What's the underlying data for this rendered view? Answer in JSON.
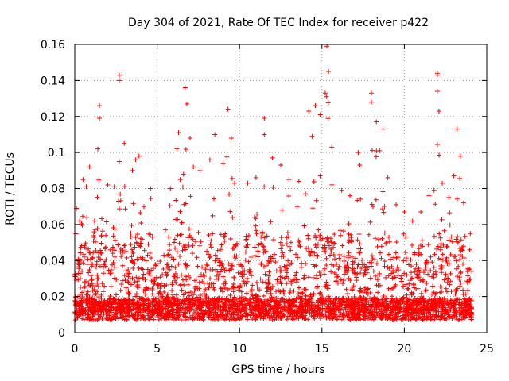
{
  "chart_data": {
    "type": "scatter",
    "title": "Day 304 of 2021, Rate Of TEC Index for receiver p422",
    "xlabel": "GPS time / hours",
    "ylabel": "ROTI / TECUs",
    "xlim": [
      0,
      25
    ],
    "ylim": [
      0,
      0.16
    ],
    "xticks": [
      0,
      5,
      10,
      15,
      20,
      25
    ],
    "xtick_labels": [
      "0",
      "5",
      "10",
      "15",
      "20",
      "25"
    ],
    "yticks": [
      0,
      0.02,
      0.04,
      0.06,
      0.08,
      0.1,
      0.12,
      0.14,
      0.16
    ],
    "ytick_labels": [
      "0",
      "0.02",
      "0.04",
      "0.06",
      "0.08",
      "0.1",
      "0.12",
      "0.14",
      "0.16"
    ],
    "grid": true,
    "marker": "+",
    "series_color": "#ff0000",
    "series": [
      {
        "name": "ROTI",
        "description": "dense scatter of ROTI values over 0-24 h, baseline ~0.01 TECU with spikes",
        "sample_points": [
          [
            0.1,
            0.069
          ],
          [
            0.3,
            0.062
          ],
          [
            0.5,
            0.085
          ],
          [
            0.7,
            0.081
          ],
          [
            0.9,
            0.092
          ],
          [
            1.2,
            0.062
          ],
          [
            1.5,
            0.126
          ],
          [
            1.5,
            0.119
          ],
          [
            1.4,
            0.102
          ],
          [
            2.0,
            0.082
          ],
          [
            2.4,
            0.081
          ],
          [
            2.7,
            0.095
          ],
          [
            2.7,
            0.143
          ],
          [
            2.7,
            0.14
          ],
          [
            3.0,
            0.105
          ],
          [
            3.5,
            0.09
          ],
          [
            3.7,
            0.096
          ],
          [
            3.9,
            0.098
          ],
          [
            4.2,
            0.07
          ],
          [
            4.6,
            0.08
          ],
          [
            5.5,
            0.057
          ],
          [
            5.8,
            0.08
          ],
          [
            6.2,
            0.102
          ],
          [
            6.3,
            0.111
          ],
          [
            6.4,
            0.085
          ],
          [
            6.6,
            0.088
          ],
          [
            6.8,
            0.127
          ],
          [
            6.7,
            0.136
          ],
          [
            7.0,
            0.108
          ],
          [
            7.2,
            0.092
          ],
          [
            7.6,
            0.09
          ],
          [
            8.2,
            0.096
          ],
          [
            8.5,
            0.11
          ],
          [
            9.0,
            0.094
          ],
          [
            9.3,
            0.124
          ],
          [
            9.5,
            0.108
          ],
          [
            9.7,
            0.083
          ],
          [
            10.5,
            0.083
          ],
          [
            11.0,
            0.086
          ],
          [
            11.5,
            0.119
          ],
          [
            11.5,
            0.11
          ],
          [
            12.0,
            0.097
          ],
          [
            12.5,
            0.093
          ],
          [
            13.0,
            0.085
          ],
          [
            13.5,
            0.07
          ],
          [
            13.6,
            0.084
          ],
          [
            14.0,
            0.077
          ],
          [
            14.2,
            0.123
          ],
          [
            14.4,
            0.109
          ],
          [
            14.6,
            0.126
          ],
          [
            14.9,
            0.121
          ],
          [
            15.2,
            0.133
          ],
          [
            15.3,
            0.159
          ],
          [
            15.4,
            0.145
          ],
          [
            15.6,
            0.103
          ],
          [
            16.2,
            0.079
          ],
          [
            16.7,
            0.076
          ],
          [
            17.2,
            0.1
          ],
          [
            17.3,
            0.093
          ],
          [
            18.0,
            0.133
          ],
          [
            18.0,
            0.128
          ],
          [
            18.3,
            0.117
          ],
          [
            18.5,
            0.101
          ],
          [
            18.7,
            0.113
          ],
          [
            19.0,
            0.086
          ],
          [
            19.5,
            0.071
          ],
          [
            20.0,
            0.067
          ],
          [
            20.5,
            0.062
          ],
          [
            21.0,
            0.067
          ],
          [
            21.5,
            0.076
          ],
          [
            21.8,
            0.079
          ],
          [
            22.0,
            0.144
          ],
          [
            22.0,
            0.143
          ],
          [
            22.0,
            0.134
          ],
          [
            22.1,
            0.123
          ],
          [
            22.3,
            0.083
          ],
          [
            22.7,
            0.075
          ],
          [
            23.0,
            0.087
          ],
          [
            23.2,
            0.113
          ],
          [
            23.4,
            0.098
          ],
          [
            23.6,
            0.072
          ],
          [
            24.0,
            0.055
          ]
        ]
      }
    ]
  }
}
